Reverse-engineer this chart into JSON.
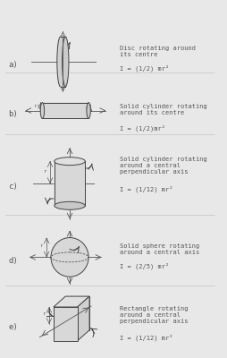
{
  "bg_color": "#e8e8e8",
  "inner_bg": "#f5f5f5",
  "line_color": "#555555",
  "shape_color": "#cccccc",
  "shape_edge": "#444444",
  "text_color": "#555555",
  "sections": [
    {
      "label": "a)",
      "shape": "disc",
      "title": "Disc rotating around\nits centre",
      "formula": "I = (1/2) mr²"
    },
    {
      "label": "b)",
      "shape": "hcylinder",
      "title": "Solid cylinder rotating\naround its centre",
      "formula": "I = (1/2)mr²"
    },
    {
      "label": "c)",
      "shape": "vcylinder",
      "title": "Solid cylinder rotating\naround a central\nperpendicular axis",
      "formula": "I = (1/12) mr²"
    },
    {
      "label": "d)",
      "shape": "sphere",
      "title": "Solid sphere rotating\naround a central axis",
      "formula": "I = (2/5) mr²"
    },
    {
      "label": "e)",
      "shape": "rectangle",
      "title": "Rectangle rotating\naround a central\nperpendicular axis",
      "formula": "I = (1/12) mr²"
    }
  ]
}
